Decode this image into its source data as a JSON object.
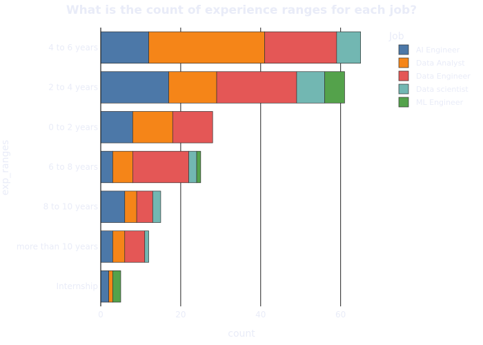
{
  "chart_data": {
    "type": "bar",
    "orientation": "horizontal",
    "stacked": true,
    "title": "What is the count of experience ranges for each job?",
    "xlabel": "count",
    "ylabel": "exp_ranges",
    "xlim": [
      0,
      68
    ],
    "x_ticks": [
      0,
      20,
      40,
      60
    ],
    "grid": true,
    "legend_title": "Job",
    "legend_position": "top-right",
    "categories": [
      "4 to 6 years",
      "2 to 4 years",
      "0 to 2 years",
      "6 to 8 years",
      "8 to 10 years",
      "more than 10 years",
      "Internship"
    ],
    "series": [
      {
        "name": "AI Engineer",
        "color": "#4c78a8",
        "values": [
          12,
          17,
          8,
          3,
          6,
          3,
          2
        ]
      },
      {
        "name": "Data Analyst",
        "color": "#f58518",
        "values": [
          29,
          12,
          10,
          5,
          3,
          3,
          1
        ]
      },
      {
        "name": "Data Engineer",
        "color": "#e45756",
        "values": [
          18,
          20,
          10,
          14,
          4,
          5,
          0
        ]
      },
      {
        "name": "Data scientist",
        "color": "#72b7b2",
        "values": [
          6,
          7,
          0,
          2,
          2,
          1,
          0
        ]
      },
      {
        "name": "ML Engineer",
        "color": "#54a24b",
        "values": [
          0,
          5,
          0,
          1,
          0,
          0,
          2
        ]
      }
    ]
  }
}
